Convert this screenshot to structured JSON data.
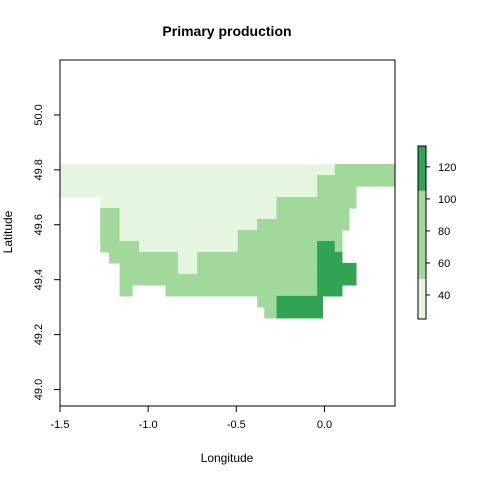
{
  "chart_data": {
    "type": "heatmap",
    "title": "Primary production",
    "xlabel": "Longitude",
    "ylabel": "Latitude",
    "xlim": [
      -1.5,
      0.4
    ],
    "ylim": [
      48.94,
      50.2
    ],
    "x_ticks": [
      -1.5,
      -1.0,
      -0.5,
      0.0
    ],
    "x_tick_labels": [
      "-1.5",
      "-1.0",
      "-0.5",
      "0.0"
    ],
    "y_ticks": [
      49.0,
      49.2,
      49.4,
      49.6,
      49.8,
      50.0
    ],
    "y_tick_labels": [
      "49.0",
      "49.2",
      "49.4",
      "49.6",
      "49.8",
      "50.0"
    ],
    "grid": false,
    "legend": {
      "position": "right",
      "breaks": [
        25,
        50,
        100,
        105,
        133
      ],
      "colors": [
        "#E5F5E0",
        "#A1D99B",
        "#A1D99B",
        "#31A354"
      ],
      "ticks": [
        40,
        60,
        80,
        100,
        120
      ],
      "tick_labels": [
        "40",
        "60",
        "80",
        "100",
        "120"
      ]
    },
    "class_colors": [
      "#E5F5E0",
      "#A1D99B",
      "#31A354"
    ],
    "cells": [
      {
        "lat": 49.8,
        "lon_start": -1.5,
        "lon_end": 0.06,
        "class": 0
      },
      {
        "lat": 49.8,
        "lon_start": 0.06,
        "lon_end": 0.4,
        "class": 1
      },
      {
        "lat": 49.76,
        "lon_start": -1.5,
        "lon_end": -0.04,
        "class": 0
      },
      {
        "lat": 49.76,
        "lon_start": -0.04,
        "lon_end": 0.29,
        "class": 1
      },
      {
        "lat": 49.76,
        "lon_start": 0.29,
        "lon_end": 0.4,
        "class": 1
      },
      {
        "lat": 49.72,
        "lon_start": -1.5,
        "lon_end": -0.04,
        "class": 0
      },
      {
        "lat": 49.72,
        "lon_start": -0.04,
        "lon_end": 0.18,
        "class": 1
      },
      {
        "lat": 49.68,
        "lon_start": -1.27,
        "lon_end": -0.27,
        "class": 0
      },
      {
        "lat": 49.68,
        "lon_start": -0.27,
        "lon_end": 0.18,
        "class": 1
      },
      {
        "lat": 49.64,
        "lon_start": -1.27,
        "lon_end": -1.16,
        "class": 1
      },
      {
        "lat": 49.64,
        "lon_start": -1.16,
        "lon_end": -0.27,
        "class": 0
      },
      {
        "lat": 49.64,
        "lon_start": -0.27,
        "lon_end": 0.14,
        "class": 1
      },
      {
        "lat": 49.6,
        "lon_start": -1.27,
        "lon_end": -1.16,
        "class": 1
      },
      {
        "lat": 49.6,
        "lon_start": -1.16,
        "lon_end": -0.38,
        "class": 0
      },
      {
        "lat": 49.6,
        "lon_start": -0.38,
        "lon_end": 0.14,
        "class": 1
      },
      {
        "lat": 49.56,
        "lon_start": -1.27,
        "lon_end": -1.16,
        "class": 1
      },
      {
        "lat": 49.56,
        "lon_start": -1.16,
        "lon_end": -0.49,
        "class": 0
      },
      {
        "lat": 49.56,
        "lon_start": -0.49,
        "lon_end": 0.1,
        "class": 1
      },
      {
        "lat": 49.52,
        "lon_start": -1.27,
        "lon_end": -1.05,
        "class": 1
      },
      {
        "lat": 49.52,
        "lon_start": -1.05,
        "lon_end": -0.49,
        "class": 0
      },
      {
        "lat": 49.52,
        "lon_start": -0.49,
        "lon_end": -0.04,
        "class": 1
      },
      {
        "lat": 49.52,
        "lon_start": -0.04,
        "lon_end": 0.06,
        "class": 2
      },
      {
        "lat": 49.52,
        "lon_start": 0.06,
        "lon_end": 0.1,
        "class": 1
      },
      {
        "lat": 49.48,
        "lon_start": -1.22,
        "lon_end": -0.83,
        "class": 1
      },
      {
        "lat": 49.48,
        "lon_start": -0.83,
        "lon_end": -0.72,
        "class": 0
      },
      {
        "lat": 49.48,
        "lon_start": -0.72,
        "lon_end": -0.04,
        "class": 1
      },
      {
        "lat": 49.48,
        "lon_start": -0.04,
        "lon_end": 0.1,
        "class": 2
      },
      {
        "lat": 49.44,
        "lon_start": -1.16,
        "lon_end": -0.83,
        "class": 1
      },
      {
        "lat": 49.44,
        "lon_start": -0.83,
        "lon_end": -0.72,
        "class": 0
      },
      {
        "lat": 49.44,
        "lon_start": -0.72,
        "lon_end": -0.04,
        "class": 1
      },
      {
        "lat": 49.44,
        "lon_start": -0.04,
        "lon_end": 0.18,
        "class": 2
      },
      {
        "lat": 49.4,
        "lon_start": -1.16,
        "lon_end": -0.04,
        "class": 1
      },
      {
        "lat": 49.4,
        "lon_start": -0.04,
        "lon_end": 0.18,
        "class": 2
      },
      {
        "lat": 49.36,
        "lon_start": -1.16,
        "lon_end": -1.09,
        "class": 1
      },
      {
        "lat": 49.36,
        "lon_start": -0.9,
        "lon_end": -0.04,
        "class": 1
      },
      {
        "lat": 49.36,
        "lon_start": -0.04,
        "lon_end": 0.1,
        "class": 2
      },
      {
        "lat": 49.32,
        "lon_start": -0.38,
        "lon_end": -0.27,
        "class": 1
      },
      {
        "lat": 49.32,
        "lon_start": -0.27,
        "lon_end": -0.01,
        "class": 2
      },
      {
        "lat": 49.28,
        "lon_start": -0.34,
        "lon_end": -0.27,
        "class": 1
      },
      {
        "lat": 49.28,
        "lon_start": -0.27,
        "lon_end": -0.01,
        "class": 2
      }
    ]
  }
}
